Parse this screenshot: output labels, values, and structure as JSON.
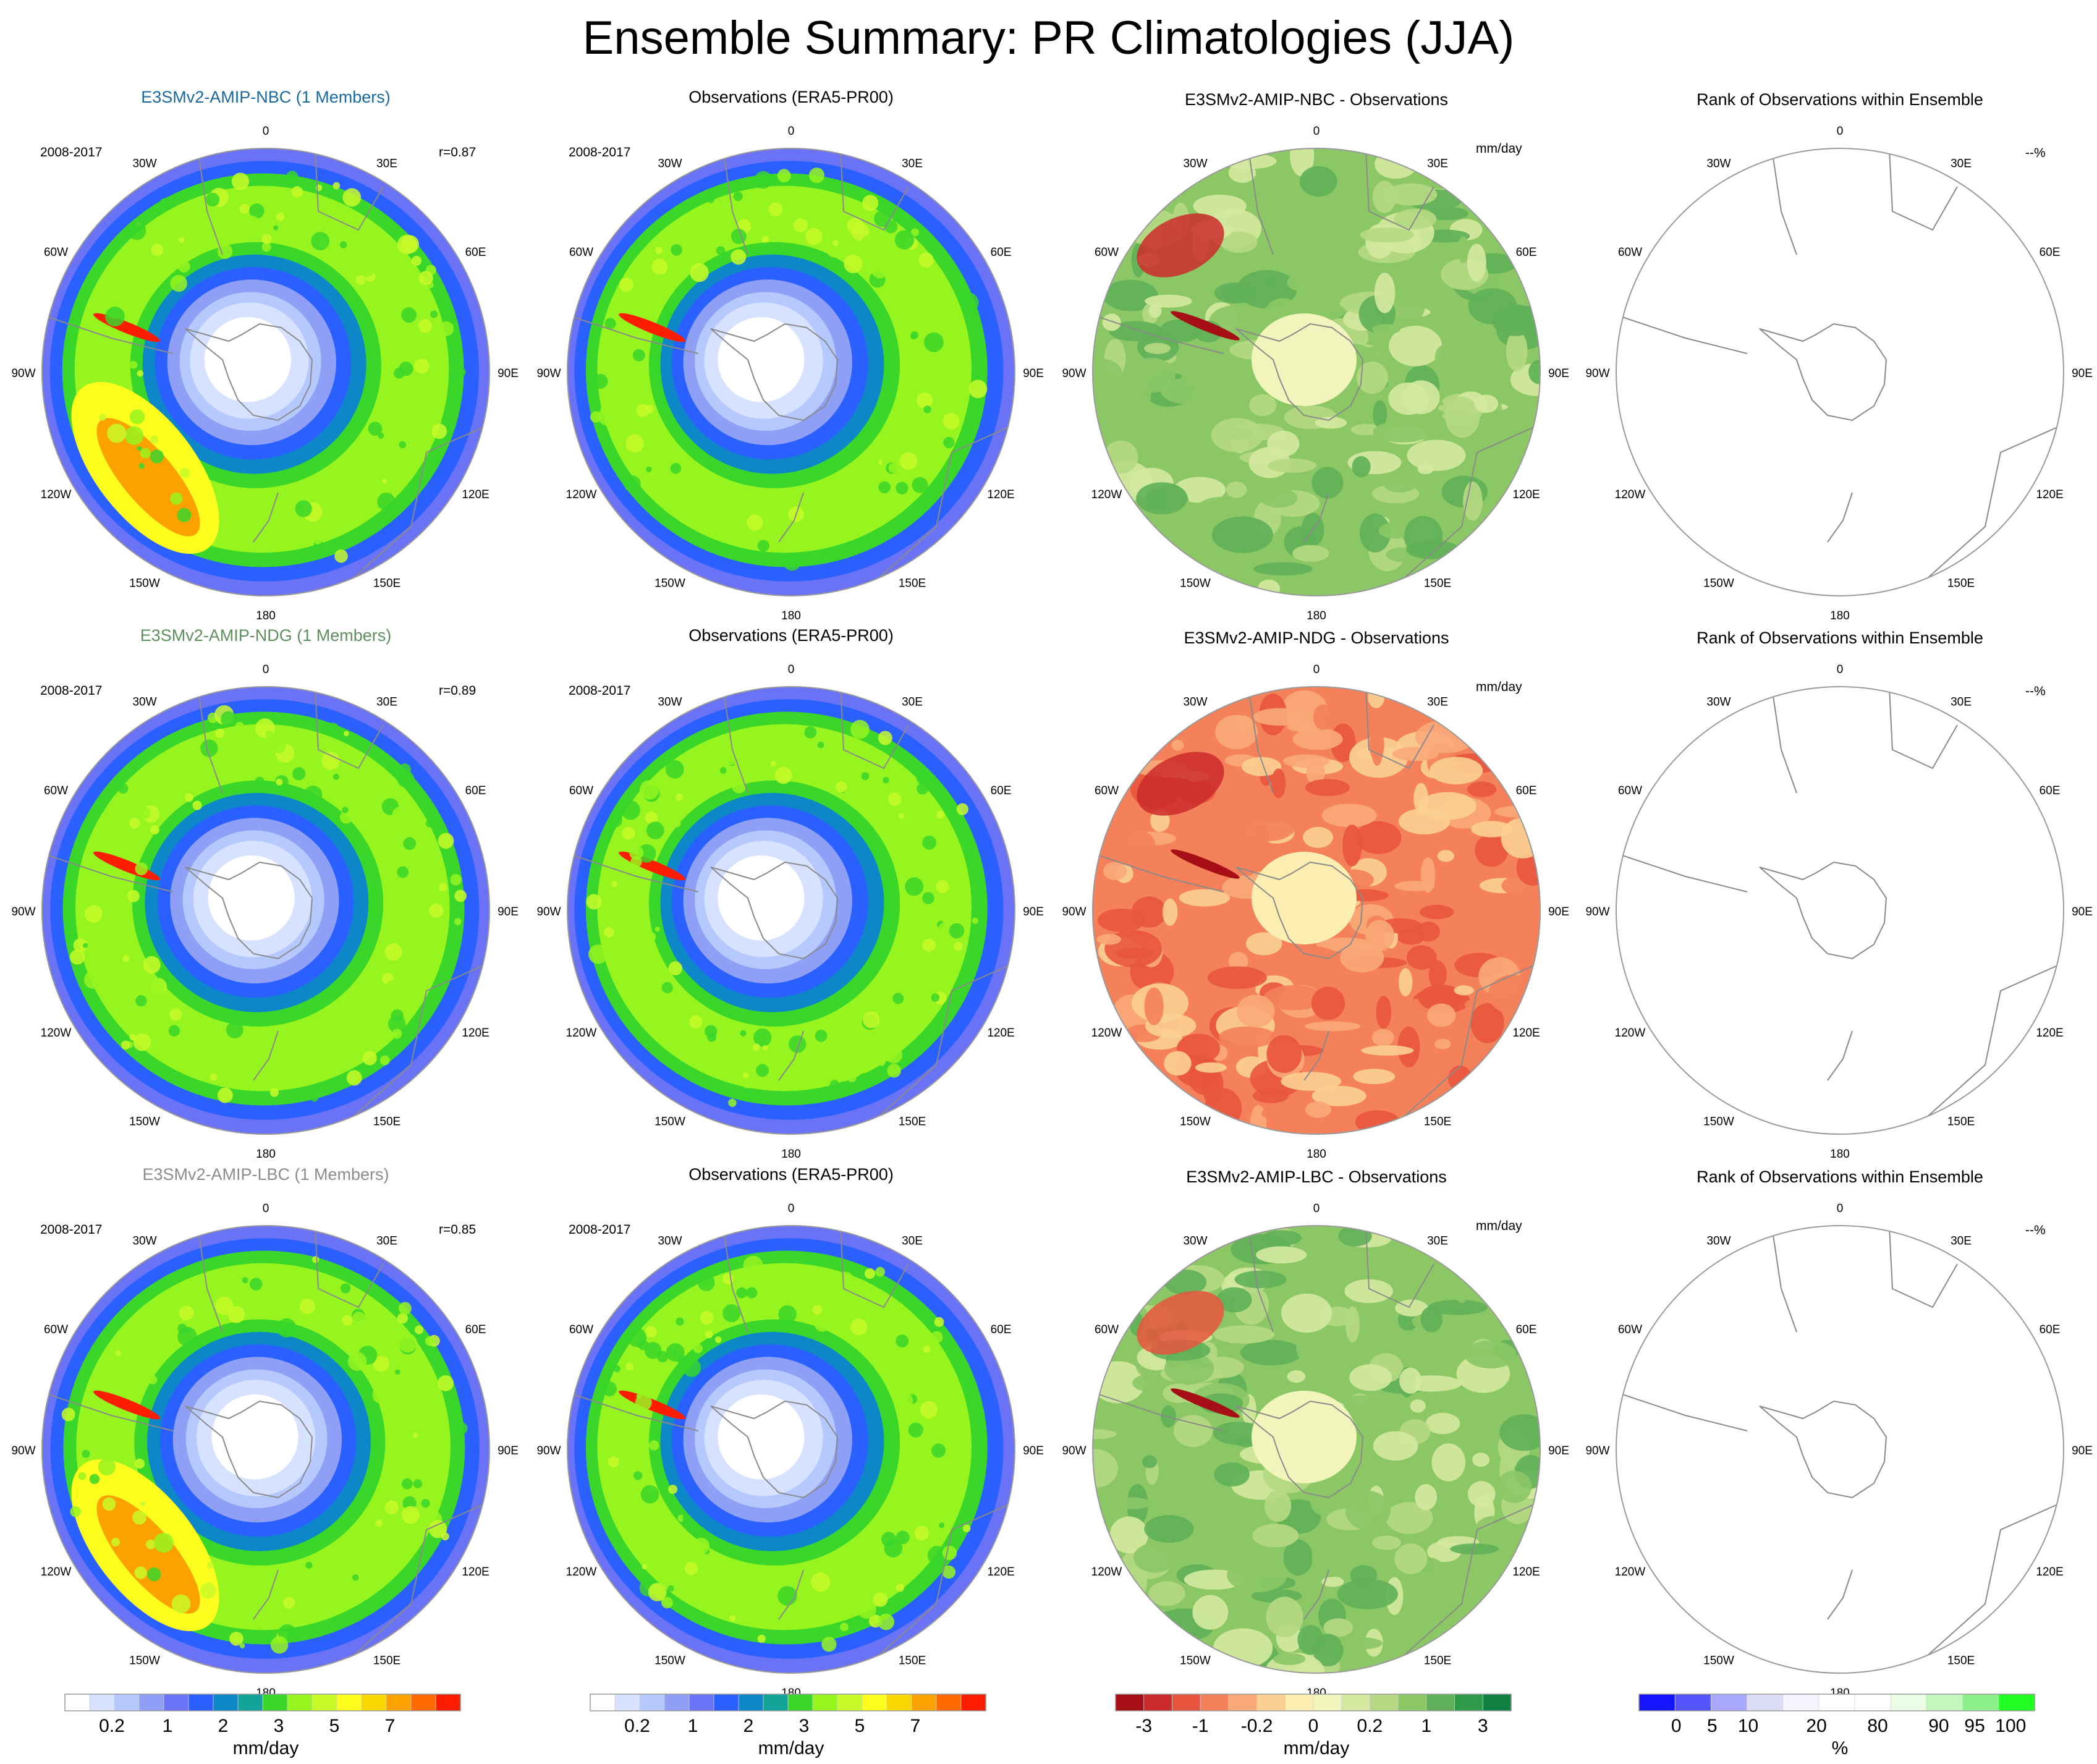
{
  "page": {
    "title": "Ensemble Summary: PR Climatologies (JJA)"
  },
  "longitudes": [
    "0",
    "30E",
    "60E",
    "90E",
    "120E",
    "150E",
    "180",
    "150W",
    "120W",
    "90W",
    "60W",
    "30W"
  ],
  "colors": {
    "precip": [
      "#ffffff",
      "#d6e2ff",
      "#b5c9ff",
      "#8e9ff5",
      "#6a73f5",
      "#2a60ff",
      "#0d87c8",
      "#14a398",
      "#3ad62a",
      "#96f51e",
      "#c8fa28",
      "#fdfe1e",
      "#fbd700",
      "#fba100",
      "#ff6a00",
      "#ff1d00"
    ],
    "diff": [
      "#a50f15",
      "#cb2a2a",
      "#e8553e",
      "#f4815a",
      "#f9a878",
      "#fcd092",
      "#fbeeb0",
      "#f2f5bb",
      "#d5e9a0",
      "#b5d983",
      "#8cc766",
      "#5fb058",
      "#2f9a4a",
      "#108043"
    ],
    "rank": [
      "#1414ff",
      "#5555ff",
      "#a8a8ff",
      "#dcdcf6",
      "#f5f5ff",
      "#ffffff",
      "#ffffff",
      "#eafee6",
      "#c4f7bd",
      "#8df08a",
      "#22ff22"
    ],
    "land_line": "#8a8a8a",
    "circle_line": "#9a9a9a"
  },
  "rows": [
    {
      "model_title": "E3SMv2-AMIP-NBC (1 Members)",
      "model_title_color": "#1a6aa0",
      "period": "2008-2017",
      "r_value": "r=0.87",
      "obs_title": "Observations (ERA5-PR00)",
      "obs_period": "2008-2017",
      "diff_title": "E3SMv2-AMIP-NBC - Observations",
      "diff_units": "mm/day",
      "rank_title": "Rank of Observations within Ensemble",
      "rank_units": "--%"
    },
    {
      "model_title": "E3SMv2-AMIP-NDG (1 Members)",
      "model_title_color": "#5f8f5f",
      "period": "2008-2017",
      "r_value": "r=0.89",
      "obs_title": "Observations (ERA5-PR00)",
      "obs_period": "2008-2017",
      "diff_title": "E3SMv2-AMIP-NDG - Observations",
      "diff_units": "mm/day",
      "rank_title": "Rank of Observations within Ensemble",
      "rank_units": "--%"
    },
    {
      "model_title": "E3SMv2-AMIP-LBC (1 Members)",
      "model_title_color": "#8c8c8c",
      "period": "2008-2017",
      "r_value": "r=0.85",
      "obs_title": "Observations (ERA5-PR00)",
      "obs_period": "2008-2017",
      "diff_title": "E3SMv2-AMIP-LBC - Observations",
      "diff_units": "mm/day",
      "rank_title": "Rank of Observations within Ensemble",
      "rank_units": "--%"
    }
  ],
  "colorbars": [
    {
      "id": "model-colorbar",
      "ticks": [
        "0.2",
        "1",
        "2",
        "3",
        "5",
        "7"
      ],
      "units": "mm/day",
      "palette": "precip"
    },
    {
      "id": "obs-colorbar",
      "ticks": [
        "0.2",
        "1",
        "2",
        "3",
        "5",
        "7"
      ],
      "units": "mm/day",
      "palette": "precip"
    },
    {
      "id": "diff-colorbar",
      "ticks": [
        "-3",
        "-1",
        "-0.2",
        "0",
        "0.2",
        "1",
        "3"
      ],
      "units": "mm/day",
      "palette": "diff"
    },
    {
      "id": "rank-colorbar",
      "ticks": [
        "0",
        "5",
        "10",
        "20",
        "80",
        "90",
        "95",
        "100"
      ],
      "units": "%",
      "palette": "rank"
    }
  ],
  "chart_data": {
    "type": "heatmap",
    "title": "Ensemble Summary: PR Climatologies (JJA)",
    "projection": "south polar stereographic",
    "season": "JJA",
    "period": "2008-2017",
    "variable": "PR",
    "panels": [
      {
        "row": 1,
        "column": "model",
        "title": "E3SMv2-AMIP-NBC (1 Members)",
        "pattern_correlation": 0.87,
        "units": "mm/day"
      },
      {
        "row": 1,
        "column": "observations",
        "title": "Observations (ERA5-PR00)",
        "units": "mm/day"
      },
      {
        "row": 1,
        "column": "difference",
        "title": "E3SMv2-AMIP-NBC - Observations",
        "units": "mm/day"
      },
      {
        "row": 1,
        "column": "rank",
        "title": "Rank of Observations within Ensemble",
        "units": "%"
      },
      {
        "row": 2,
        "column": "model",
        "title": "E3SMv2-AMIP-NDG (1 Members)",
        "pattern_correlation": 0.89,
        "units": "mm/day"
      },
      {
        "row": 2,
        "column": "observations",
        "title": "Observations (ERA5-PR00)",
        "units": "mm/day"
      },
      {
        "row": 2,
        "column": "difference",
        "title": "E3SMv2-AMIP-NDG - Observations",
        "units": "mm/day"
      },
      {
        "row": 2,
        "column": "rank",
        "title": "Rank of Observations within Ensemble",
        "units": "%"
      },
      {
        "row": 3,
        "column": "model",
        "title": "E3SMv2-AMIP-LBC (1 Members)",
        "pattern_correlation": 0.85,
        "units": "mm/day"
      },
      {
        "row": 3,
        "column": "observations",
        "title": "Observations (ERA5-PR00)",
        "units": "mm/day"
      },
      {
        "row": 3,
        "column": "difference",
        "title": "E3SMv2-AMIP-LBC - Observations",
        "units": "mm/day"
      },
      {
        "row": 3,
        "column": "rank",
        "title": "Rank of Observations within Ensemble",
        "units": "%"
      }
    ],
    "legends": [
      {
        "panel_column": "model",
        "levels": [
          0.2,
          1,
          2,
          3,
          5,
          7
        ],
        "units": "mm/day"
      },
      {
        "panel_column": "observations",
        "levels": [
          0.2,
          1,
          2,
          3,
          5,
          7
        ],
        "units": "mm/day"
      },
      {
        "panel_column": "difference",
        "levels": [
          -3,
          -1,
          -0.2,
          0,
          0.2,
          1,
          3
        ],
        "units": "mm/day"
      },
      {
        "panel_column": "rank",
        "levels": [
          0,
          5,
          10,
          20,
          80,
          90,
          95,
          100
        ],
        "units": "%"
      }
    ]
  }
}
